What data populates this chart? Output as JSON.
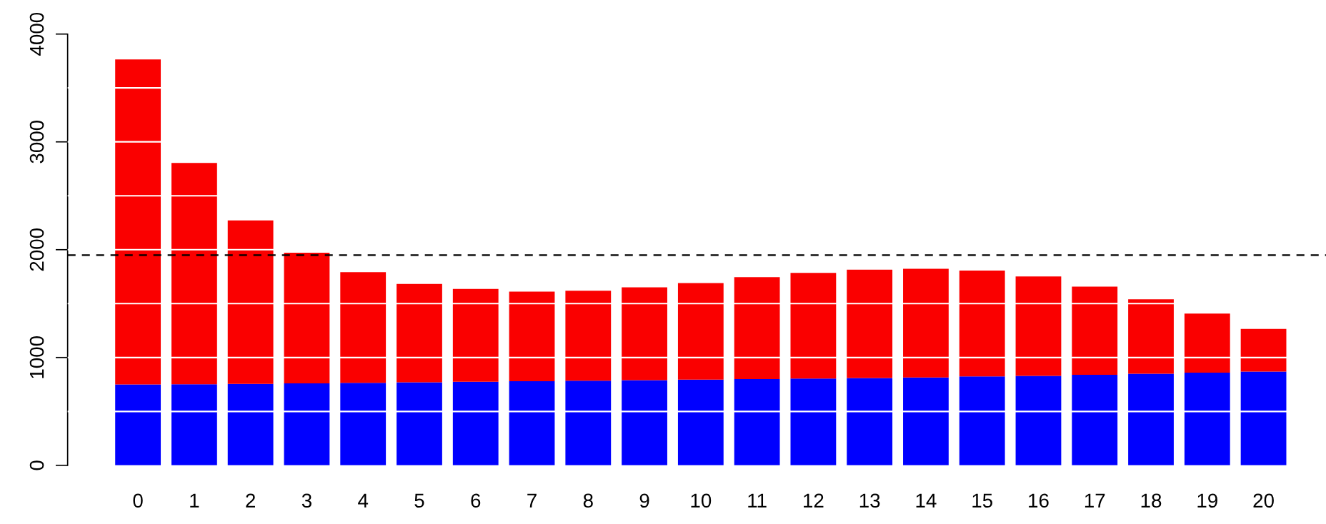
{
  "chart_data": {
    "type": "bar",
    "stacked": true,
    "categories": [
      "0",
      "1",
      "2",
      "3",
      "4",
      "5",
      "6",
      "7",
      "8",
      "9",
      "10",
      "11",
      "12",
      "13",
      "14",
      "15",
      "16",
      "17",
      "18",
      "19",
      "20"
    ],
    "series": [
      {
        "color": "#0000ff",
        "values": [
          750,
          752,
          755,
          760,
          765,
          770,
          775,
          780,
          785,
          790,
          795,
          800,
          805,
          810,
          815,
          825,
          830,
          840,
          850,
          860,
          870
        ]
      },
      {
        "color": "#fa0000",
        "values": [
          3014,
          2053,
          1516,
          1212,
          1027,
          912,
          860,
          831,
          834,
          860,
          895,
          945,
          979,
          1005,
          1008,
          982,
          922,
          818,
          690,
          547,
          395
        ]
      }
    ],
    "ylim": [
      0,
      4000
    ],
    "yticks": [
      0,
      1000,
      2000,
      3000,
      4000
    ],
    "ref_lines": [
      {
        "axis": "y",
        "value": 1950,
        "color": "#000000",
        "line_style": "dashed"
      },
      {
        "axis": "y",
        "value": 500,
        "color": "#ffffff",
        "line_style": "solid"
      },
      {
        "axis": "y",
        "value": 1000,
        "color": "#ffffff",
        "line_style": "solid"
      },
      {
        "axis": "y",
        "value": 1500,
        "color": "#ffffff",
        "line_style": "solid"
      },
      {
        "axis": "y",
        "value": 2000,
        "color": "#ffffff",
        "line_style": "solid"
      },
      {
        "axis": "y",
        "value": 2500,
        "color": "#ffffff",
        "line_style": "solid"
      },
      {
        "axis": "y",
        "value": 3000,
        "color": "#ffffff",
        "line_style": "solid"
      },
      {
        "axis": "y",
        "value": 3500,
        "color": "#ffffff",
        "line_style": "solid"
      }
    ]
  }
}
